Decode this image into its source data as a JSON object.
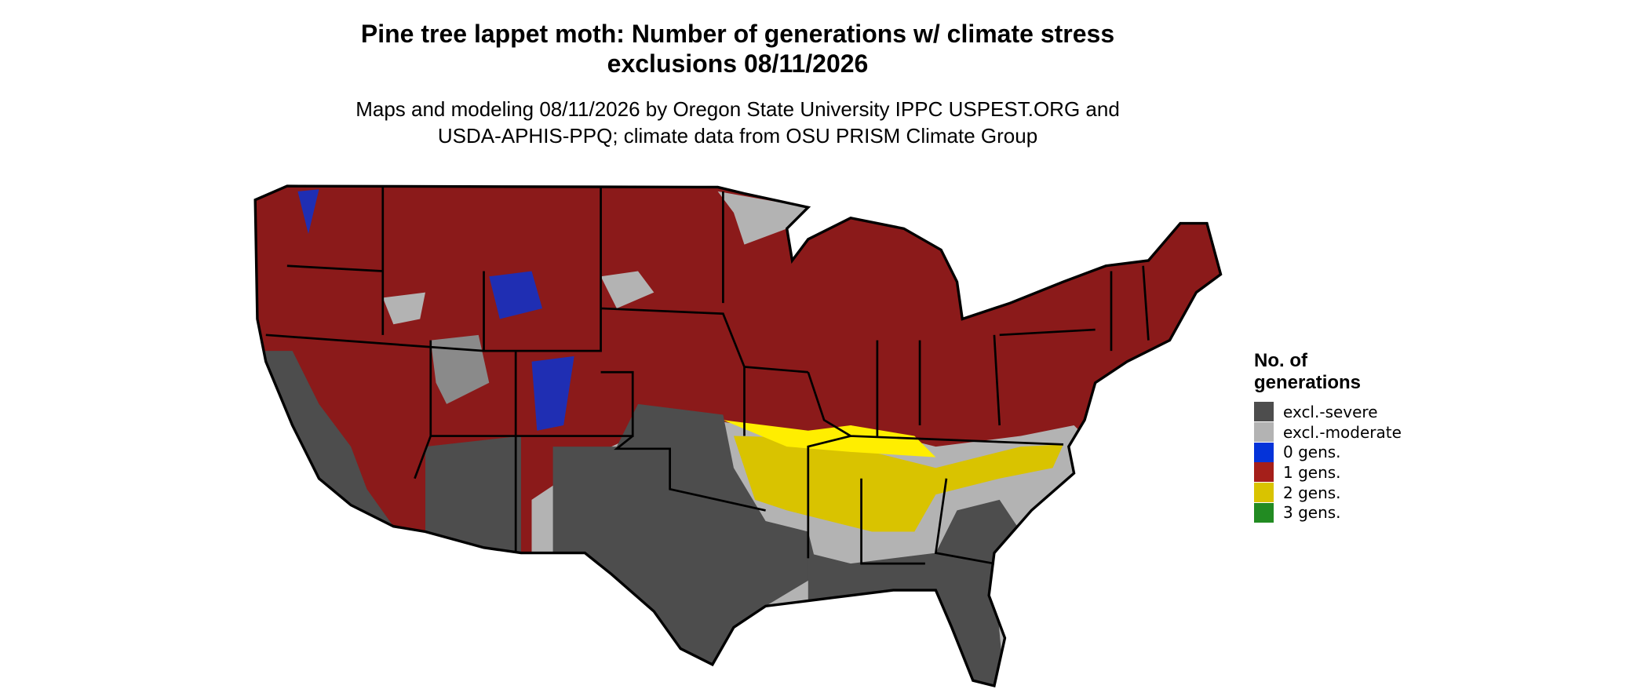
{
  "header": {
    "title": "Pine tree lappet moth: Number of generations w/ climate stress exclusions 08/11/2026",
    "subtitle": "Maps and modeling 08/11/2026 by Oregon State University IPPC USPEST.ORG and USDA-APHIS-PPQ; climate data from OSU PRISM Climate Group"
  },
  "legend": {
    "title": "No. of generations",
    "entries": [
      {
        "label": "excl.-severe",
        "color": "#4d4d4d"
      },
      {
        "label": "excl.-moderate",
        "color": "#b3b3b3"
      },
      {
        "label": "0 gens.",
        "color": "#0433d9"
      },
      {
        "label": "1 gens.",
        "color": "#a51f1a"
      },
      {
        "label": "2 gens.",
        "color": "#d9c300"
      },
      {
        "label": "3 gens.",
        "color": "#228b22"
      }
    ]
  }
}
